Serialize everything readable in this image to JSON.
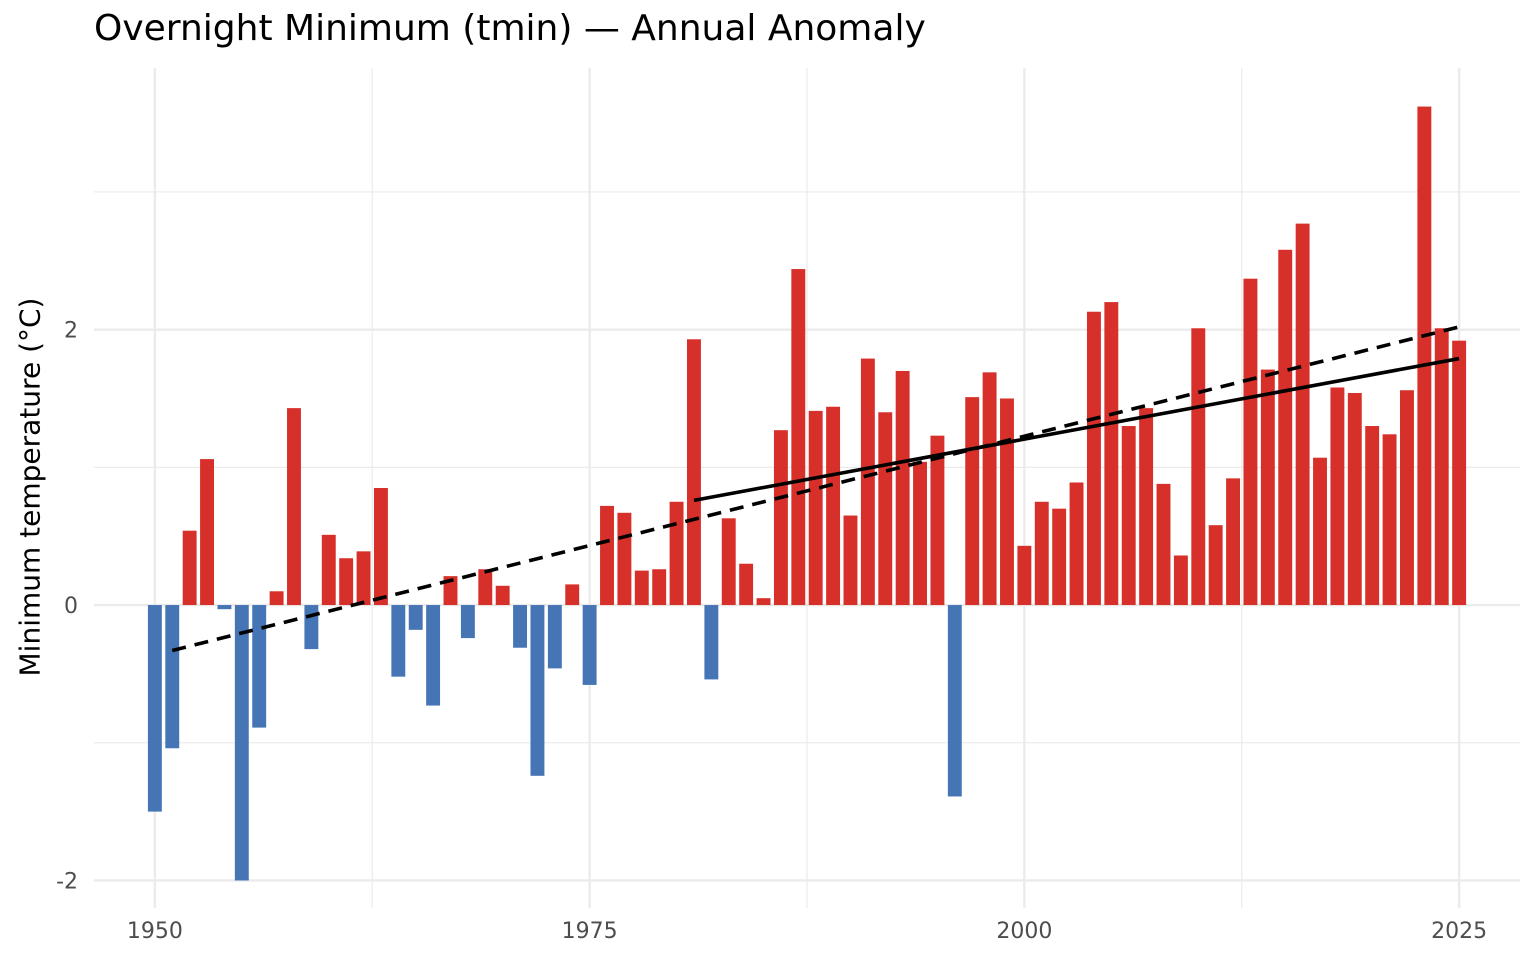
{
  "chart_data": {
    "type": "bar",
    "title": "Overnight Minimum (tmin) — Annual Anomaly",
    "xlabel": "",
    "ylabel": "Minimum temperature (°C)",
    "x_ticks": [
      "1950",
      "1975",
      "2000",
      "2025"
    ],
    "y_ticks": [
      "-2",
      "0",
      "2"
    ],
    "xlim": [
      1946.5,
      2028.5
    ],
    "ylim": [
      -2.2,
      3.9
    ],
    "grid": true,
    "legend": "none",
    "colors": {
      "positive": "#d7302a",
      "negative": "#4575b4",
      "trend": "#000000",
      "grid": "#ebebeb"
    },
    "series": [
      {
        "years": [
          1950,
          1951,
          1952,
          1953,
          1954,
          1955,
          1956,
          1957,
          1958,
          1959,
          1960,
          1961,
          1962,
          1963,
          1964,
          1965,
          1966,
          1967,
          1968,
          1969,
          1970,
          1971,
          1972,
          1973,
          1974,
          1975,
          1976,
          1977,
          1978,
          1979,
          1980,
          1981,
          1982,
          1983,
          1984,
          1985,
          1986,
          1987,
          1988,
          1989,
          1990,
          1991,
          1992,
          1993,
          1994,
          1995,
          1996,
          1997,
          1998,
          1999,
          2000,
          2001,
          2002,
          2003,
          2004,
          2005,
          2006,
          2007,
          2008,
          2009,
          2010,
          2011,
          2012,
          2013,
          2014,
          2015,
          2016,
          2017,
          2018,
          2019,
          2020,
          2021,
          2022,
          2023,
          2024,
          2025
        ],
        "values": [
          -1.5,
          -1.04,
          0.54,
          1.06,
          -0.03,
          -2.0,
          -0.89,
          0.1,
          1.43,
          -0.32,
          0.51,
          0.34,
          0.39,
          0.85,
          -0.52,
          -0.18,
          -0.73,
          0.21,
          -0.24,
          0.26,
          0.14,
          -0.31,
          -1.24,
          -0.46,
          0.15,
          -0.58,
          0.72,
          0.67,
          0.25,
          0.26,
          0.75,
          1.93,
          -0.54,
          0.63,
          0.3,
          0.05,
          1.27,
          2.44,
          1.41,
          1.44,
          0.65,
          1.79,
          1.4,
          1.7,
          1.04,
          1.23,
          -1.39,
          1.51,
          1.69,
          1.5,
          0.43,
          0.75,
          0.7,
          0.89,
          2.13,
          2.2,
          1.3,
          1.43,
          0.88,
          0.36,
          2.01,
          0.58,
          0.92,
          2.37,
          1.71,
          2.58,
          2.77,
          1.07,
          1.58,
          1.54,
          1.3,
          1.24,
          1.56,
          3.62,
          2.01,
          1.92
        ]
      }
    ],
    "trends": [
      {
        "style": "dashed",
        "from": [
          1951,
          -0.33
        ],
        "to": [
          2025,
          2.02
        ]
      },
      {
        "style": "solid",
        "from": [
          1981,
          0.76
        ],
        "to": [
          2025,
          1.79
        ]
      }
    ]
  }
}
